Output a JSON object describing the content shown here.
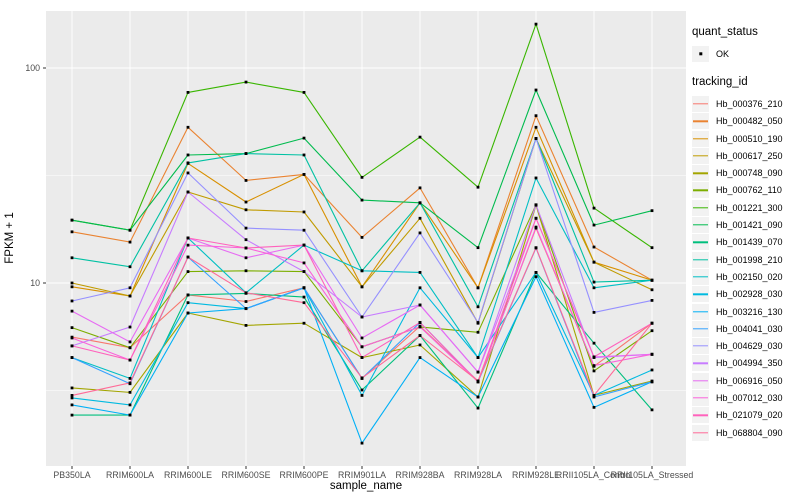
{
  "style": {
    "panel_bg": "#ebebeb",
    "grid_major": "#ffffff",
    "grid_minor": "#ffffff",
    "axis_text": "#4d4d4d",
    "tick_mark": "#333333",
    "legend_key_bg": "#f2f2f2",
    "point_color": "#000000"
  },
  "chart_data": {
    "type": "line",
    "title": "",
    "xlabel": "sample_name",
    "ylabel": "FPKM + 1",
    "y_scale": "log10",
    "ylim": [
      1.41,
      184
    ],
    "y_ticks": [
      100,
      10
    ],
    "y_minor_ticks": [
      31.62,
      3.162
    ],
    "grid": true,
    "legend_position": "right",
    "point_shape": "small black square",
    "categories": [
      "PB350LA",
      "RRIM600LA",
      "RRIM600LE",
      "RRIM600SE",
      "RRIM600PE",
      "RRIM901LA",
      "RRIM928BA",
      "RRIM928LA",
      "RRIM928LE",
      "RRII105LA_Control",
      "RRII105LA_Stressed"
    ],
    "legend": {
      "quant_status_title": "quant_status",
      "quant_status_items": [
        "OK"
      ],
      "tracking_title": "tracking_id"
    },
    "series": [
      {
        "name": "Hb_000376_210",
        "color": "#F8766D",
        "values": [
          5.6,
          5.0,
          8.8,
          8.2,
          9.5,
          3.6,
          6.3,
          3.5,
          18.0,
          4.1,
          6.5
        ]
      },
      {
        "name": "Hb_000482_050",
        "color": "#EA8331",
        "values": [
          17.3,
          15.5,
          53.0,
          30.0,
          32.0,
          16.3,
          27.7,
          9.5,
          60.0,
          14.7,
          10.3
        ]
      },
      {
        "name": "Hb_000510_190",
        "color": "#D89000",
        "values": [
          9.6,
          8.7,
          36.0,
          23.8,
          32.0,
          9.6,
          23.6,
          9.5,
          53.0,
          12.5,
          10.3
        ]
      },
      {
        "name": "Hb_000617_250",
        "color": "#C09B00",
        "values": [
          10.0,
          8.7,
          26.5,
          21.9,
          21.4,
          9.6,
          20.0,
          6.5,
          47.0,
          12.5,
          9.3
        ]
      },
      {
        "name": "Hb_000748_090",
        "color": "#A3A500",
        "values": [
          3.25,
          3.1,
          7.25,
          6.35,
          6.5,
          4.5,
          5.15,
          2.95,
          23.0,
          3.0,
          3.5
        ]
      },
      {
        "name": "Hb_000762_110",
        "color": "#7CAE00",
        "values": [
          6.2,
          5.0,
          11.3,
          11.4,
          11.3,
          5.05,
          6.25,
          5.9,
          23.1,
          3.9,
          6.0
        ]
      },
      {
        "name": "Hb_001221_300",
        "color": "#39B600",
        "values": [
          19.6,
          17.6,
          77.0,
          86.0,
          77.0,
          31.0,
          47.7,
          27.9,
          160.0,
          22.3,
          14.6
        ]
      },
      {
        "name": "Hb_001421_090",
        "color": "#00BB4E",
        "values": [
          19.6,
          17.6,
          39.4,
          40.0,
          47.2,
          24.3,
          23.6,
          14.6,
          79.0,
          18.6,
          21.7
        ]
      },
      {
        "name": "Hb_001439_070",
        "color": "#00BF7D",
        "values": [
          2.43,
          2.43,
          8.8,
          8.95,
          8.6,
          3.18,
          5.7,
          2.62,
          11.2,
          5.25,
          2.57
        ]
      },
      {
        "name": "Hb_001998_210",
        "color": "#00C1A3",
        "values": [
          13.1,
          11.9,
          36.2,
          40.0,
          39.4,
          11.4,
          23.6,
          7.75,
          47.0,
          10.1,
          10.3
        ]
      },
      {
        "name": "Hb_002150_020",
        "color": "#00BFC4",
        "values": [
          4.5,
          3.6,
          16.2,
          9.0,
          15.0,
          11.4,
          11.2,
          4.5,
          30.8,
          9.5,
          10.3
        ]
      },
      {
        "name": "Hb_002928_030",
        "color": "#00BAE0",
        "values": [
          2.92,
          2.71,
          8.1,
          7.6,
          9.5,
          3.0,
          9.5,
          4.5,
          11.2,
          3.0,
          3.94
        ]
      },
      {
        "name": "Hb_003216_130",
        "color": "#00B0F6",
        "values": [
          2.71,
          2.43,
          7.25,
          7.6,
          9.5,
          1.8,
          4.5,
          2.95,
          10.7,
          2.64,
          3.47
        ]
      },
      {
        "name": "Hb_004041_030",
        "color": "#35A2FF",
        "values": [
          4.5,
          3.4,
          13.2,
          7.6,
          9.5,
          3.6,
          6.55,
          3.47,
          14.55,
          2.95,
          3.47
        ]
      },
      {
        "name": "Hb_004629_030",
        "color": "#9590FF",
        "values": [
          8.25,
          9.5,
          32.5,
          18.0,
          17.6,
          6.95,
          17.1,
          6.55,
          47.0,
          7.3,
          8.3
        ]
      },
      {
        "name": "Hb_004994_350",
        "color": "#C77CFF",
        "values": [
          5.1,
          6.24,
          26.5,
          15.9,
          11.3,
          6.95,
          7.9,
          3.85,
          23.1,
          4.5,
          4.66
        ]
      },
      {
        "name": "Hb_006916_050",
        "color": "#E76BF3",
        "values": [
          7.4,
          5.32,
          16.2,
          13.1,
          15.0,
          5.55,
          7.9,
          3.85,
          20.0,
          4.53,
          4.66
        ]
      },
      {
        "name": "Hb_007012_030",
        "color": "#FA62DB",
        "values": [
          5.55,
          4.38,
          15.0,
          14.55,
          12.4,
          5.05,
          6.25,
          3.47,
          18.2,
          4.13,
          4.66
        ]
      },
      {
        "name": "Hb_021079_020",
        "color": "#FF62BC",
        "values": [
          5.1,
          4.38,
          16.2,
          14.55,
          15.0,
          4.5,
          6.55,
          3.47,
          20.0,
          4.53,
          6.5
        ]
      },
      {
        "name": "Hb_068804_090",
        "color": "#FF6A98",
        "values": [
          3.0,
          3.43,
          13.2,
          9.0,
          8.1,
          3.62,
          5.7,
          3.5,
          14.6,
          3.0,
          6.5
        ]
      }
    ]
  }
}
